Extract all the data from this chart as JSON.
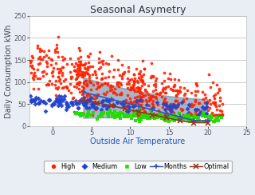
{
  "title": "Seasonal Asymetry",
  "xlabel": "Outside Air Temperature",
  "ylabel": "Daily Consumption kWh",
  "xlim": [
    -3,
    25
  ],
  "ylim": [
    0,
    250
  ],
  "xticks": [
    0,
    5,
    10,
    15,
    20,
    25
  ],
  "yticks": [
    0,
    50,
    100,
    150,
    200,
    250
  ],
  "plot_bg": "#ffffff",
  "fig_bg": "#e8eef4",
  "grid_color": "#cccccc",
  "high_color": "#ff2200",
  "medium_color": "#2244cc",
  "low_color": "#22dd00",
  "months_color": "#3355bb",
  "optimal_color": "#993322",
  "fill_color": "#6688aa",
  "fill_alpha": 0.6,
  "seed": 7
}
